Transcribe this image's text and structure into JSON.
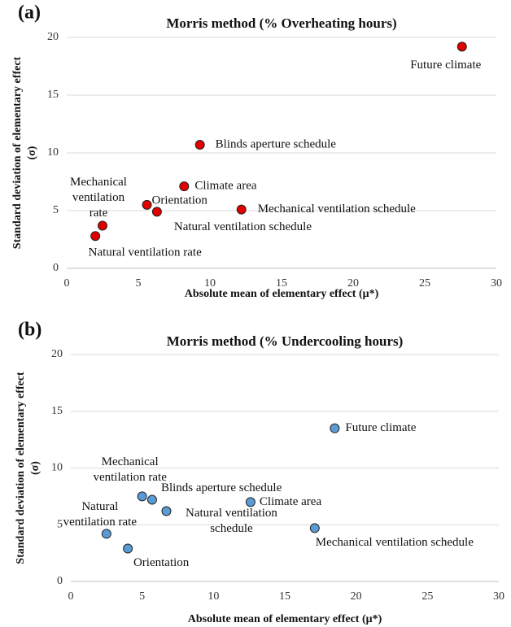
{
  "chart_data": [
    {
      "type": "scatter",
      "panel": "(a)",
      "title": "Morris method (% Overheating hours)",
      "xlabel": "Absolute mean of elementary effect (μ*)",
      "ylabel": [
        "Standard deviation of elementary effect",
        "(σ)"
      ],
      "color": "#e00000",
      "grid": true,
      "xlim": [
        0,
        30
      ],
      "xticks": [
        0,
        5,
        10,
        15,
        20,
        25,
        30
      ],
      "ylim": [
        0,
        20
      ],
      "yticks": [
        0,
        5,
        10,
        15,
        20
      ],
      "labels": [
        [
          "Future climate"
        ],
        [
          "Blinds aperture schedule"
        ],
        [
          "Climate area"
        ],
        [
          "Orientation"
        ],
        [
          "Natural ventilation schedule"
        ],
        [
          "Mechanical ventilation schedule"
        ],
        [
          "Mechanical",
          "ventilation",
          "rate"
        ],
        [
          "Natural ventilation rate"
        ]
      ],
      "x": [
        27.6,
        9.3,
        8.2,
        5.6,
        6.3,
        12.2,
        2.5,
        2.0
      ],
      "values": [
        19.2,
        10.7,
        7.1,
        5.5,
        4.9,
        5.1,
        3.7,
        2.8
      ]
    },
    {
      "type": "scatter",
      "panel": "(b)",
      "title": "Morris method (% Undercooling hours)",
      "xlabel": "Absolute mean of elementary effect (μ*)",
      "ylabel": [
        "Standard deviation of elementary effect",
        "(σ)"
      ],
      "color": "#5b9bd5",
      "grid": true,
      "xlim": [
        0,
        30
      ],
      "xticks": [
        0,
        5,
        10,
        15,
        20,
        25,
        30
      ],
      "ylim": [
        0,
        20
      ],
      "yticks": [
        0,
        5,
        10,
        15,
        20
      ],
      "labels": [
        [
          "Future climate"
        ],
        [
          "Climate area"
        ],
        [
          "Mechanical ventilation schedule"
        ],
        [
          "Mechanical",
          "ventilation rate"
        ],
        [
          "Blinds aperture schedule"
        ],
        [
          "Natural ventilation",
          "schedule"
        ],
        [
          "Natural",
          "ventilation rate"
        ],
        [
          "Orientation"
        ]
      ],
      "x": [
        18.5,
        12.6,
        17.1,
        5.0,
        5.7,
        6.7,
        2.5,
        4.0
      ],
      "values": [
        13.5,
        7.0,
        4.7,
        7.5,
        7.2,
        6.2,
        4.2,
        2.9
      ]
    }
  ]
}
